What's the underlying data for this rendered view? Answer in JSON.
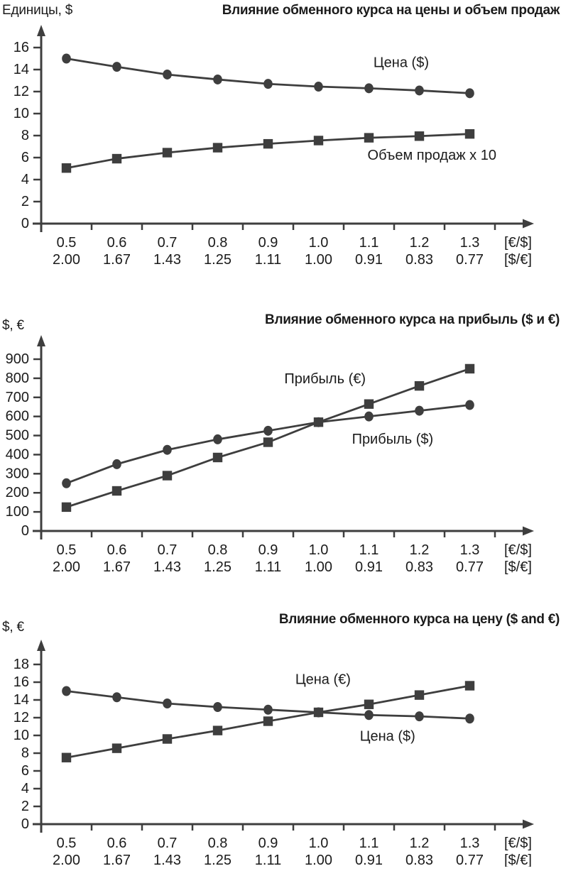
{
  "page": {
    "background": "#ffffff",
    "ink_color": "#3e3e3e",
    "text_color": "#1b1b1b"
  },
  "chart_data": [
    {
      "type": "line",
      "title": "Влияние обменного курса на цены и объем продаж",
      "ylabel": "Единицы, $",
      "categories": [
        0.5,
        0.6,
        0.7,
        0.8,
        0.9,
        1.0,
        1.1,
        1.2,
        1.3
      ],
      "x_tick_labels_row1": [
        "0.5",
        "0.6",
        "0.7",
        "0.8",
        "0.9",
        "1.0",
        "1.1",
        "1.2",
        "1.3"
      ],
      "x_tick_labels_row2": [
        "2.00",
        "1.67",
        "1.43",
        "1.25",
        "1.11",
        "1.00",
        "0.91",
        "0.83",
        "0.77"
      ],
      "x_unit_row1": "[€/$]",
      "x_unit_row2": "[$/€]",
      "y_ticks": [
        0,
        2,
        4,
        6,
        8,
        10,
        12,
        14,
        16
      ],
      "ylim": [
        0,
        18
      ],
      "grid": false,
      "legend_position": "inline-labels",
      "series": [
        {
          "name": "Цена ($)",
          "marker": "circle",
          "values": [
            15.0,
            14.25,
            13.55,
            13.1,
            12.7,
            12.45,
            12.3,
            12.1,
            11.85
          ],
          "label_anchor": {
            "x_index": 6.64,
            "value": 14.6
          }
        },
        {
          "name": "Объем продаж x 10",
          "marker": "square",
          "values": [
            5.05,
            5.9,
            6.45,
            6.9,
            7.25,
            7.55,
            7.8,
            7.95,
            8.15
          ],
          "label_anchor": {
            "x_index": 7.25,
            "value": 6.2
          }
        }
      ]
    },
    {
      "type": "line",
      "title": "Влияние обменного курса на прибыль ($ и €)",
      "ylabel": "$, €",
      "categories": [
        0.5,
        0.6,
        0.7,
        0.8,
        0.9,
        1.0,
        1.1,
        1.2,
        1.3
      ],
      "x_tick_labels_row1": [
        "0.5",
        "0.6",
        "0.7",
        "0.8",
        "0.9",
        "1.0",
        "1.1",
        "1.2",
        "1.3"
      ],
      "x_tick_labels_row2": [
        "2.00",
        "1.67",
        "1.43",
        "1.25",
        "1.11",
        "1.00",
        "0.91",
        "0.83",
        "0.77"
      ],
      "x_unit_row1": "[€/$]",
      "x_unit_row2": "[$/€]",
      "y_ticks": [
        0,
        100,
        200,
        300,
        400,
        500,
        600,
        700,
        800,
        900
      ],
      "ylim": [
        0,
        980
      ],
      "grid": false,
      "legend_position": "inline-labels",
      "series": [
        {
          "name": "Прибыль ($)",
          "marker": "circle",
          "values": [
            250,
            350,
            425,
            480,
            525,
            570,
            600,
            630,
            660
          ],
          "label_anchor": {
            "x_index": 6.47,
            "value": 480
          }
        },
        {
          "name": "Прибыль (€)",
          "marker": "square",
          "values": [
            125,
            210,
            290,
            385,
            465,
            570,
            665,
            760,
            850
          ],
          "label_anchor": {
            "x_index": 5.13,
            "value": 795
          }
        }
      ]
    },
    {
      "type": "line",
      "title": "Влияние обменного курса на цену ($ and €)",
      "ylabel": "$, €",
      "categories": [
        0.5,
        0.6,
        0.7,
        0.8,
        0.9,
        1.0,
        1.1,
        1.2,
        1.3
      ],
      "x_tick_labels_row1": [
        "0.5",
        "0.6",
        "0.7",
        "0.8",
        "0.9",
        "1.0",
        "1.1",
        "1.2",
        "1.3"
      ],
      "x_tick_labels_row2": [
        "2.00",
        "1.67",
        "1.43",
        "1.25",
        "1.11",
        "1.00",
        "0.91",
        "0.83",
        "0.77"
      ],
      "x_unit_row1": "[€/$]",
      "x_unit_row2": "[$/€]",
      "y_ticks": [
        0,
        2,
        4,
        6,
        8,
        10,
        12,
        14,
        16,
        18
      ],
      "ylim": [
        0,
        20
      ],
      "grid": false,
      "legend_position": "inline-labels",
      "series": [
        {
          "name": "Цена ($)",
          "marker": "circle",
          "values": [
            15.0,
            14.3,
            13.6,
            13.2,
            12.9,
            12.6,
            12.3,
            12.15,
            11.9
          ],
          "label_anchor": {
            "x_index": 6.37,
            "value": 9.9
          }
        },
        {
          "name": "Цена (€)",
          "marker": "square",
          "values": [
            7.5,
            8.55,
            9.6,
            10.55,
            11.6,
            12.6,
            13.5,
            14.55,
            15.6
          ],
          "label_anchor": {
            "x_index": 5.09,
            "value": 16.3
          }
        }
      ]
    }
  ]
}
